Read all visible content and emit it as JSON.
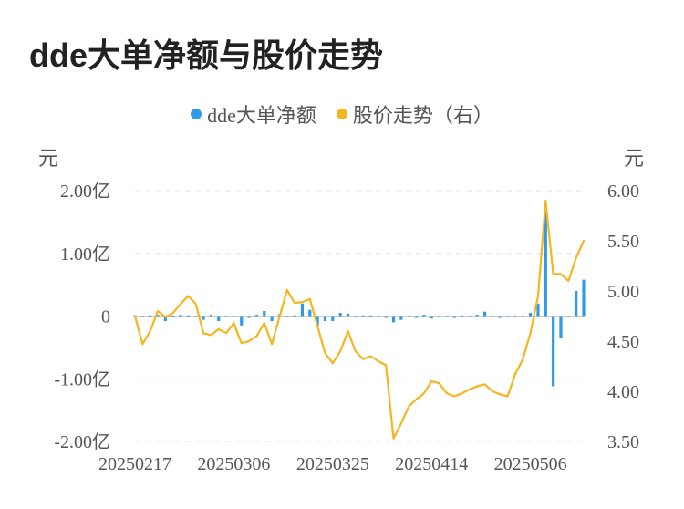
{
  "title": "dde大单净额与股价走势",
  "legend": [
    {
      "label": "dde大单净额",
      "color": "#2f9be8"
    },
    {
      "label": "股价走势（右）",
      "color": "#f5b51e"
    }
  ],
  "chart_data": {
    "type": "bar+line",
    "title": "dde大单净额与股价走势",
    "left_unit": "元",
    "right_unit": "元",
    "y_left_ticks": [
      "2.00亿",
      "1.00亿",
      "0",
      "-1.00亿",
      "-2.00亿"
    ],
    "y_left_range": [
      -2.0,
      2.0
    ],
    "y_right_ticks": [
      "6.00",
      "5.50",
      "5.00",
      "4.50",
      "4.00",
      "3.50"
    ],
    "y_right_range": [
      3.5,
      6.0
    ],
    "x_tick_labels": [
      "20250217",
      "20250306",
      "20250325",
      "20250414",
      "20250506"
    ],
    "x_tick_indices": [
      0,
      13,
      26,
      39,
      52
    ],
    "grid": true,
    "legend_position": "top-center",
    "series": [
      {
        "name": "dde大单净额",
        "type": "bar",
        "axis": "left",
        "color": "#2f9be8",
        "values": [
          0.01,
          -0.02,
          0.01,
          0.02,
          -0.08,
          0.01,
          0.02,
          0.01,
          -0.01,
          -0.06,
          0.02,
          -0.08,
          -0.02,
          -0.01,
          -0.15,
          -0.03,
          0.02,
          0.08,
          -0.08,
          0.03,
          -0.01,
          0.01,
          0.2,
          0.1,
          -0.15,
          -0.08,
          -0.08,
          0.05,
          0.04,
          -0.01,
          0.01,
          0.01,
          -0.01,
          -0.03,
          -0.1,
          -0.06,
          -0.02,
          -0.03,
          0.02,
          -0.04,
          -0.02,
          -0.01,
          -0.03,
          0.01,
          -0.02,
          0.02,
          0.07,
          -0.01,
          -0.03,
          -0.02,
          -0.01,
          -0.02,
          0.05,
          0.2,
          1.75,
          -1.12,
          -0.35,
          -0.02,
          0.4,
          0.58
        ]
      },
      {
        "name": "股价走势（右）",
        "type": "line",
        "axis": "right",
        "color": "#f5b51e",
        "values": [
          4.75,
          4.47,
          4.6,
          4.8,
          4.74,
          4.78,
          4.87,
          4.95,
          4.87,
          4.58,
          4.56,
          4.62,
          4.58,
          4.68,
          4.48,
          4.5,
          4.55,
          4.68,
          4.47,
          4.74,
          5.01,
          4.88,
          4.89,
          4.92,
          4.65,
          4.38,
          4.28,
          4.4,
          4.6,
          4.4,
          4.32,
          4.35,
          4.3,
          4.26,
          3.53,
          3.68,
          3.85,
          3.92,
          3.98,
          4.1,
          4.08,
          3.98,
          3.95,
          3.98,
          4.02,
          4.05,
          4.07,
          4.0,
          3.97,
          3.95,
          4.17,
          4.32,
          4.58,
          4.95,
          5.9,
          5.17,
          5.17,
          5.1,
          5.33,
          5.5
        ]
      }
    ]
  }
}
